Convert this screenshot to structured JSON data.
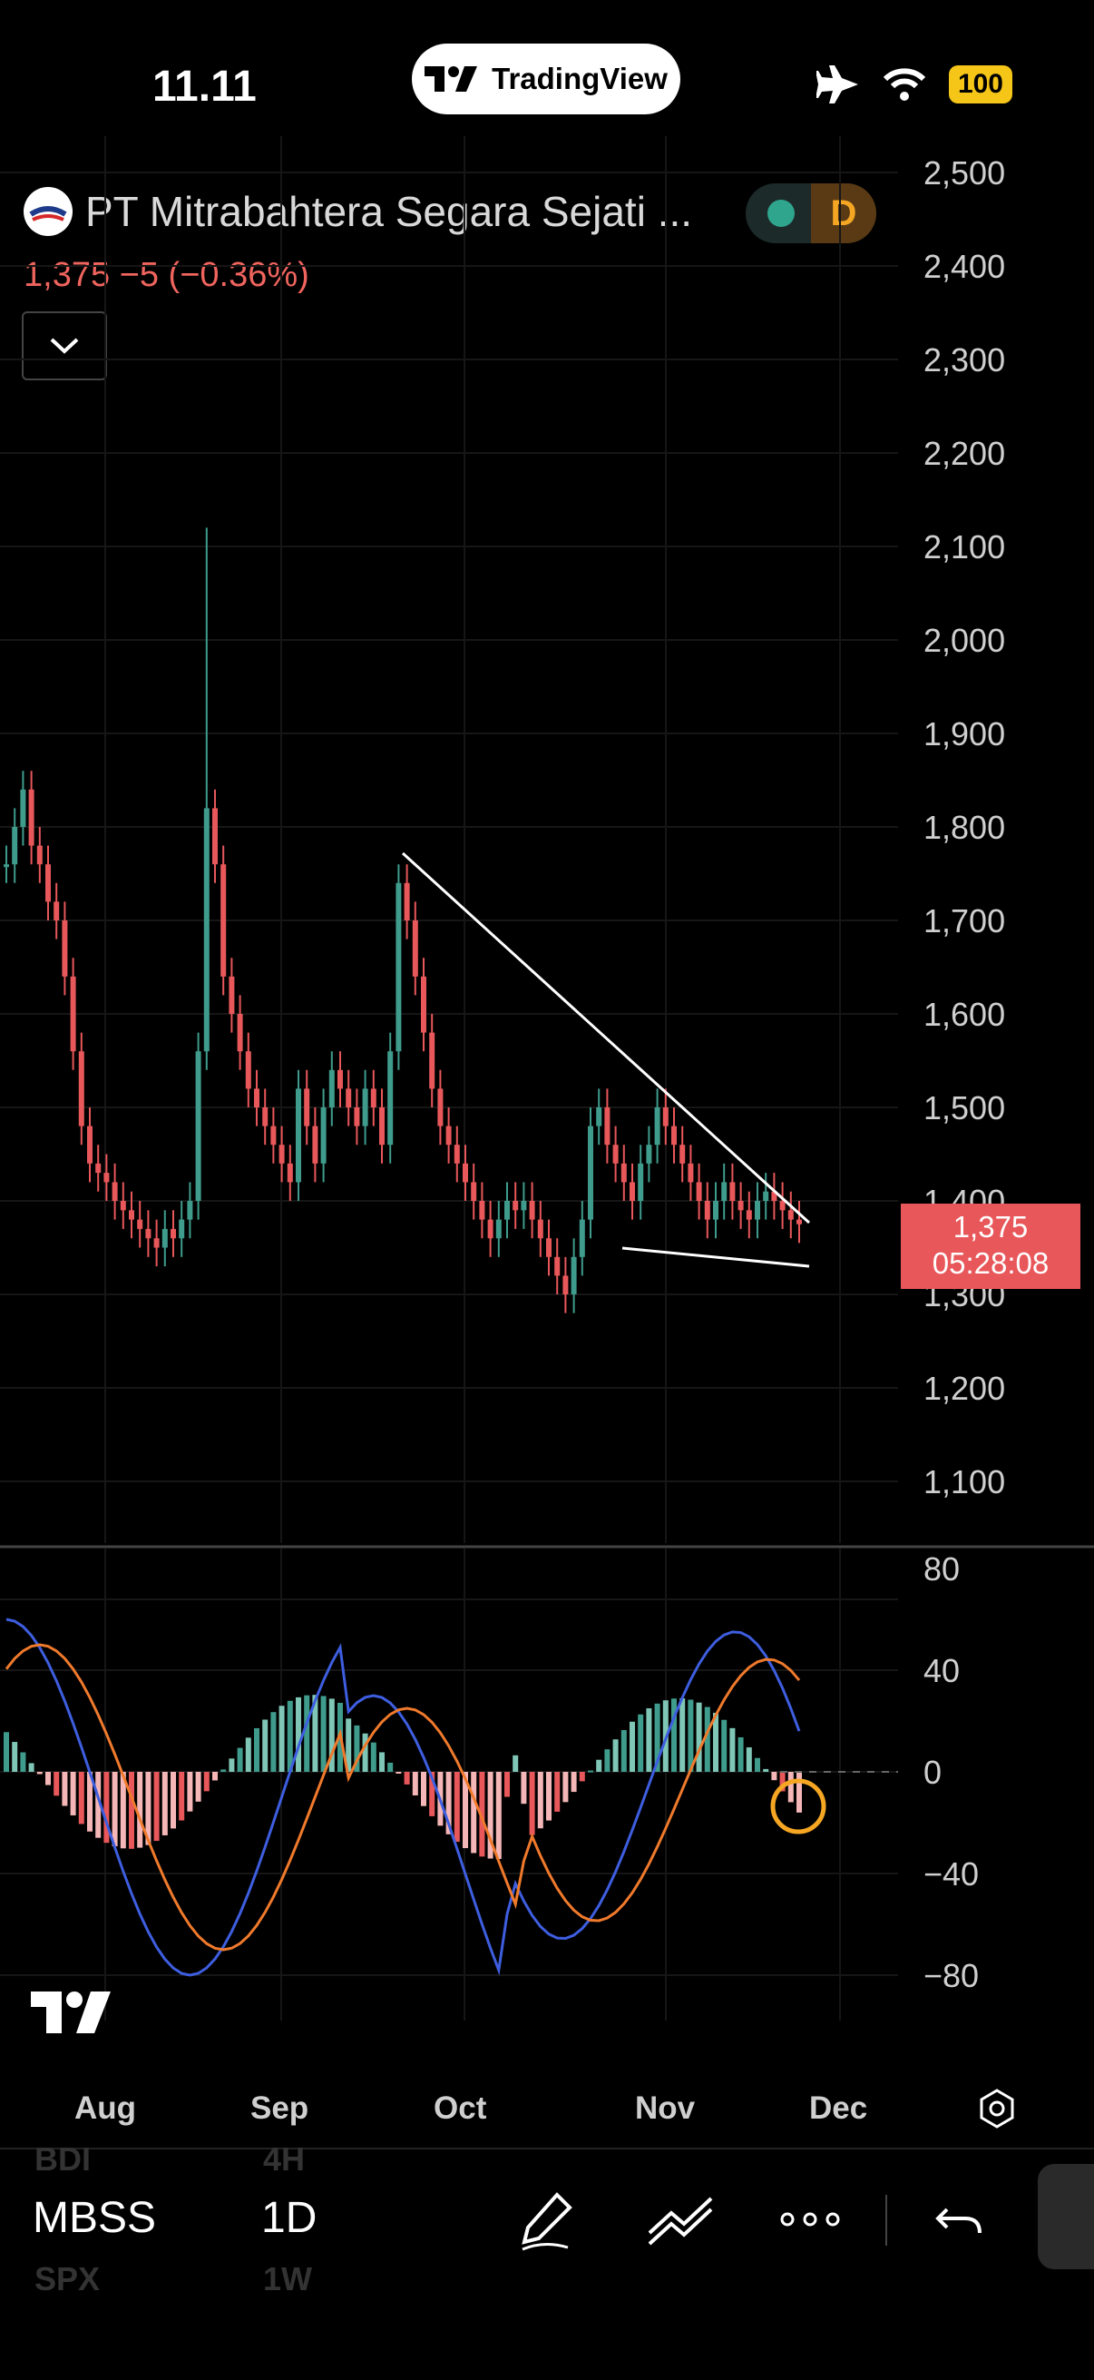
{
  "status_bar": {
    "time": "11.11",
    "app_pill": "TradingView",
    "battery": "100"
  },
  "symbol": {
    "name": "PT Mitrabahtera Segara Sejati ...",
    "price_change": "1,375  −5 (−0.36%)",
    "interval_badge": "D"
  },
  "price_axis": [
    "2,500",
    "2,400",
    "2,300",
    "2,200",
    "2,100",
    "2,000",
    "1,900",
    "1,800",
    "1,700",
    "1,600",
    "1,500",
    "1,400",
    "1,300",
    "1,200",
    "1,100"
  ],
  "last_price_tag": {
    "price": "1,375",
    "countdown": "05:28:08"
  },
  "macd_axis": [
    "80",
    "40",
    "0",
    "−40",
    "−80"
  ],
  "time_axis": [
    "Aug",
    "Sep",
    "Oct",
    "Nov",
    "Dec"
  ],
  "toolbar": {
    "ticker": "MBSS",
    "ticker_prev": "BDI",
    "ticker_next": "SPX",
    "interval": "1D",
    "interval_prev": "4H",
    "interval_next": "1W"
  },
  "colors": {
    "up": "#3f9c8c",
    "down": "#e8575a",
    "accent": "#f5a623",
    "macd": "#3e5ee0",
    "signal": "#f07a2c"
  },
  "chart_data": {
    "type": "candlestick",
    "price_ylim": [
      1050,
      2520
    ],
    "macd_ylim": [
      -100,
      90
    ],
    "trendlines": [
      "descending resistance",
      "support"
    ],
    "annotation": "circle on MACD crossover"
  }
}
